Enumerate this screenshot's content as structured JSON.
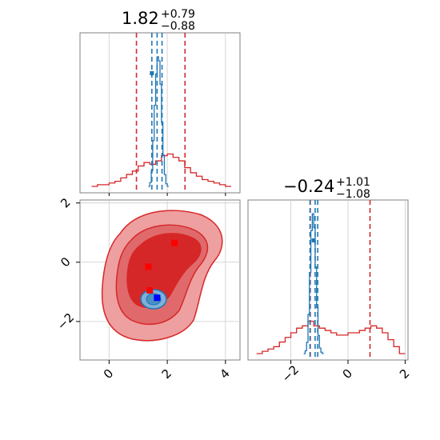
{
  "colors": {
    "red": "#d62728",
    "red_mid": "#e06a6b",
    "red_light": "#ee9fa0",
    "blue": "#1f77b4",
    "blue_dark": "#0000ff",
    "marker_red": "#ff0000",
    "grid": "#cccccc",
    "axis": "#808080"
  },
  "chart_data": [
    {
      "type": "histogram",
      "panel": "param1-marginal",
      "title": {
        "value": "1.82",
        "plus": "+0.79",
        "minus": "−0.88"
      },
      "xlim": [
        -1,
        4.5
      ],
      "series": [
        {
          "color": "red",
          "bins_x": [
            -0.6,
            -0.4,
            -0.2,
            0.0,
            0.2,
            0.4,
            0.6,
            0.8,
            1.0,
            1.2,
            1.4,
            1.6,
            1.8,
            2.0,
            2.2,
            2.4,
            2.6,
            2.8,
            3.0,
            3.2,
            3.4,
            3.6,
            3.8,
            4.0
          ],
          "heights": [
            0.0,
            0.01,
            0.01,
            0.02,
            0.03,
            0.05,
            0.07,
            0.09,
            0.12,
            0.14,
            0.13,
            0.15,
            0.18,
            0.19,
            0.17,
            0.15,
            0.11,
            0.08,
            0.06,
            0.04,
            0.03,
            0.02,
            0.01,
            0.0
          ],
          "quantiles": [
            0.94,
            1.82,
            2.61
          ]
        },
        {
          "color": "blue",
          "bins_x": [
            1.35,
            1.4,
            1.45,
            1.5,
            1.55,
            1.6,
            1.65,
            1.7,
            1.75,
            1.8,
            1.85,
            1.9,
            1.95,
            2.0
          ],
          "heights": [
            0.0,
            0.03,
            0.12,
            0.35,
            0.62,
            0.86,
            0.99,
            0.96,
            0.78,
            0.49,
            0.24,
            0.09,
            0.02,
            0.0
          ],
          "quantiles": [
            1.47,
            1.65,
            1.82
          ]
        }
      ],
      "markers": [
        {
          "x": 1.47,
          "color": "blue"
        }
      ]
    },
    {
      "type": "contour",
      "panel": "joint",
      "xlim": [
        -1,
        4.5
      ],
      "ylim": [
        -3.3,
        2.1
      ],
      "xticks": [
        "0",
        "2",
        "4"
      ],
      "yticks": [
        "−2",
        "0",
        "2"
      ],
      "markers": [
        {
          "x": 2.25,
          "y": 0.65,
          "color": "marker_red"
        },
        {
          "x": 1.35,
          "y": -0.15,
          "color": "marker_red"
        },
        {
          "x": 1.4,
          "y": -0.95,
          "color": "marker_red"
        },
        {
          "x": 1.65,
          "y": -1.2,
          "color": "blue_dark"
        }
      ]
    },
    {
      "type": "histogram",
      "panel": "param2-marginal",
      "title": {
        "value": "−0.24",
        "plus": "+1.01",
        "minus": "−1.08"
      },
      "xlim": [
        -3.5,
        2.1
      ],
      "xticks": [
        "−2",
        "0",
        "2"
      ],
      "series": [
        {
          "color": "red",
          "bins_x": [
            -3.2,
            -3.0,
            -2.8,
            -2.6,
            -2.4,
            -2.2,
            -2.0,
            -1.8,
            -1.6,
            -1.4,
            -1.2,
            -1.0,
            -0.8,
            -0.6,
            -0.4,
            -0.2,
            0.0,
            0.2,
            0.4,
            0.6,
            0.8,
            1.0,
            1.2,
            1.4,
            1.6,
            1.8
          ],
          "heights": [
            0.0,
            0.01,
            0.02,
            0.03,
            0.05,
            0.07,
            0.09,
            0.11,
            0.12,
            0.14,
            0.12,
            0.11,
            0.1,
            0.09,
            0.08,
            0.08,
            0.09,
            0.09,
            0.1,
            0.11,
            0.12,
            0.11,
            0.09,
            0.06,
            0.03,
            0.0
          ],
          "quantiles": [
            -1.32,
            -0.24,
            0.77
          ]
        },
        {
          "color": "blue",
          "bins_x": [
            -1.55,
            -1.5,
            -1.45,
            -1.4,
            -1.35,
            -1.3,
            -1.25,
            -1.2,
            -1.15,
            -1.1,
            -1.05,
            -1.0,
            -0.95,
            -0.9
          ],
          "heights": [
            0.0,
            0.02,
            0.08,
            0.28,
            0.58,
            0.88,
            1.0,
            0.9,
            0.62,
            0.33,
            0.13,
            0.04,
            0.01,
            0.0
          ],
          "quantiles": [
            -1.33,
            -1.15,
            -1.06
          ]
        }
      ],
      "markers": [
        {
          "x": -1.2,
          "color": "blue"
        }
      ]
    }
  ]
}
